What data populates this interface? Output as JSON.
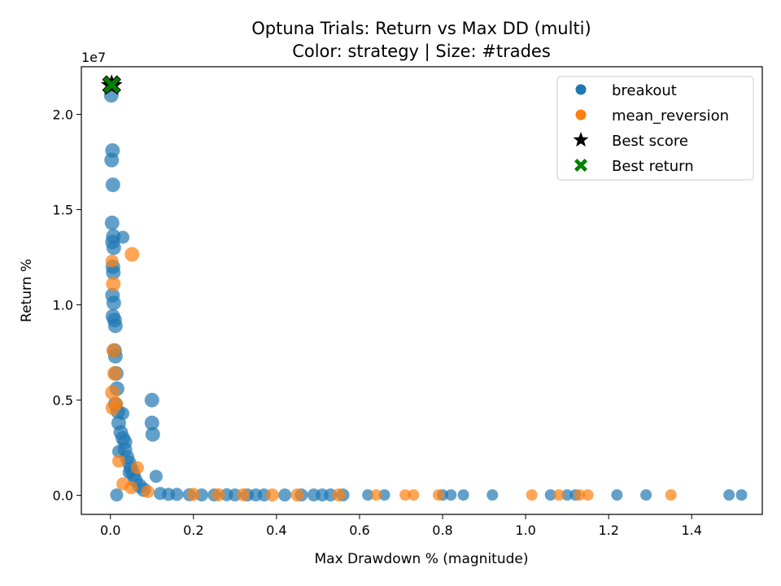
{
  "chart_data": {
    "type": "scatter",
    "title": "Optuna Trials: Return vs Max DD (multi)",
    "subtitle": "Color: strategy | Size: #trades",
    "xlabel": "Max Drawdown % (magnitude)",
    "ylabel": "Return %",
    "y_offset_label": "1e7",
    "xlim": [
      -0.07,
      1.57
    ],
    "ylim": [
      -0.1,
      2.25
    ],
    "x_ticks": [
      0.0,
      0.2,
      0.4,
      0.6,
      0.8,
      1.0,
      1.2,
      1.4
    ],
    "x_tick_labels": [
      "0.0",
      "0.2",
      "0.4",
      "0.6",
      "0.8",
      "1.0",
      "1.2",
      "1.4"
    ],
    "y_ticks": [
      0.0,
      0.5,
      1.0,
      1.5,
      2.0
    ],
    "y_tick_labels": [
      "0.0",
      "0.5",
      "1.0",
      "1.5",
      "2.0"
    ],
    "grid": false,
    "legend_position": "top-right",
    "colors": {
      "breakout": "#1f77b4",
      "mean_reversion": "#ff7f0e",
      "best_score": "#000000",
      "best_return": "#008000"
    },
    "series": [
      {
        "name": "breakout",
        "points": [
          [
            0.002,
            2.1,
            9
          ],
          [
            0.005,
            1.81,
            9
          ],
          [
            0.003,
            1.76,
            9
          ],
          [
            0.006,
            1.63,
            9
          ],
          [
            0.004,
            1.43,
            9
          ],
          [
            0.007,
            1.36,
            9
          ],
          [
            0.005,
            1.33,
            9
          ],
          [
            0.008,
            1.3,
            9
          ],
          [
            0.03,
            1.355,
            8
          ],
          [
            0.006,
            1.2,
            9
          ],
          [
            0.007,
            1.17,
            9
          ],
          [
            0.005,
            1.05,
            9
          ],
          [
            0.008,
            1.01,
            9
          ],
          [
            0.006,
            0.94,
            9
          ],
          [
            0.01,
            0.92,
            9
          ],
          [
            0.012,
            0.89,
            9
          ],
          [
            0.01,
            0.76,
            9
          ],
          [
            0.012,
            0.73,
            9
          ],
          [
            0.014,
            0.64,
            9
          ],
          [
            0.016,
            0.56,
            9
          ],
          [
            0.012,
            0.48,
            9
          ],
          [
            0.018,
            0.44,
            9
          ],
          [
            0.02,
            0.38,
            9
          ],
          [
            0.025,
            0.33,
            9
          ],
          [
            0.03,
            0.43,
            8
          ],
          [
            0.03,
            0.3,
            9
          ],
          [
            0.035,
            0.28,
            9
          ],
          [
            0.035,
            0.24,
            9
          ],
          [
            0.04,
            0.2,
            9
          ],
          [
            0.045,
            0.17,
            9
          ],
          [
            0.05,
            0.14,
            9
          ],
          [
            0.055,
            0.11,
            9
          ],
          [
            0.06,
            0.08,
            9
          ],
          [
            0.07,
            0.05,
            9
          ],
          [
            0.08,
            0.03,
            9
          ],
          [
            0.1,
            0.5,
            9
          ],
          [
            0.1,
            0.38,
            9
          ],
          [
            0.102,
            0.32,
            9
          ],
          [
            0.11,
            0.1,
            8
          ],
          [
            0.02,
            0.23,
            8
          ],
          [
            0.045,
            0.12,
            8
          ],
          [
            0.12,
            0.01,
            8
          ],
          [
            0.14,
            0.005,
            8
          ],
          [
            0.16,
            0.005,
            8
          ],
          [
            0.19,
            0.003,
            8
          ],
          [
            0.22,
            0.002,
            8
          ],
          [
            0.25,
            0.002,
            8
          ],
          [
            0.28,
            0.003,
            8
          ],
          [
            0.3,
            0.002,
            8
          ],
          [
            0.33,
            0.002,
            8
          ],
          [
            0.35,
            0.002,
            8
          ],
          [
            0.37,
            0.002,
            8
          ],
          [
            0.42,
            0.002,
            8
          ],
          [
            0.46,
            0.002,
            8
          ],
          [
            0.49,
            0.002,
            8
          ],
          [
            0.51,
            0.002,
            8
          ],
          [
            0.53,
            0.002,
            8
          ],
          [
            0.56,
            0.002,
            8
          ],
          [
            0.62,
            0.002,
            7
          ],
          [
            0.66,
            0.002,
            7
          ],
          [
            0.8,
            0.002,
            7
          ],
          [
            0.82,
            0.002,
            7
          ],
          [
            0.85,
            0.002,
            7
          ],
          [
            0.92,
            0.002,
            7
          ],
          [
            1.06,
            0.002,
            7
          ],
          [
            1.1,
            0.002,
            7
          ],
          [
            1.12,
            0.002,
            7
          ],
          [
            1.22,
            0.002,
            7
          ],
          [
            1.29,
            0.002,
            7
          ],
          [
            1.49,
            0.002,
            7
          ],
          [
            1.52,
            0.002,
            7
          ],
          [
            0.015,
            0.002,
            8
          ]
        ]
      },
      {
        "name": "mean_reversion",
        "points": [
          [
            0.052,
            1.265,
            9
          ],
          [
            0.007,
            1.11,
            9
          ],
          [
            0.004,
            1.23,
            8
          ],
          [
            0.008,
            0.76,
            9
          ],
          [
            0.01,
            0.64,
            9
          ],
          [
            0.005,
            0.54,
            9
          ],
          [
            0.006,
            0.46,
            9
          ],
          [
            0.015,
            0.48,
            8
          ],
          [
            0.065,
            0.145,
            8
          ],
          [
            0.03,
            0.06,
            8
          ],
          [
            0.05,
            0.04,
            8
          ],
          [
            0.09,
            0.02,
            8
          ],
          [
            0.2,
            0.005,
            8
          ],
          [
            0.26,
            0.003,
            8
          ],
          [
            0.32,
            0.003,
            8
          ],
          [
            0.39,
            0.002,
            8
          ],
          [
            0.45,
            0.002,
            8
          ],
          [
            0.55,
            0.002,
            8
          ],
          [
            0.64,
            0.002,
            7
          ],
          [
            0.71,
            0.002,
            7
          ],
          [
            0.73,
            0.002,
            7
          ],
          [
            0.79,
            0.002,
            7
          ],
          [
            1.015,
            0.002,
            7
          ],
          [
            1.08,
            0.002,
            7
          ],
          [
            1.13,
            0.002,
            7
          ],
          [
            1.15,
            0.002,
            7
          ],
          [
            1.35,
            0.002,
            7
          ],
          [
            0.02,
            0.18,
            8
          ]
        ]
      },
      {
        "name": "Best score",
        "marker": "star",
        "points": [
          [
            0.003,
            2.15,
            14
          ]
        ]
      },
      {
        "name": "Best return",
        "marker": "x",
        "points": [
          [
            0.003,
            2.155,
            11
          ]
        ]
      }
    ]
  }
}
